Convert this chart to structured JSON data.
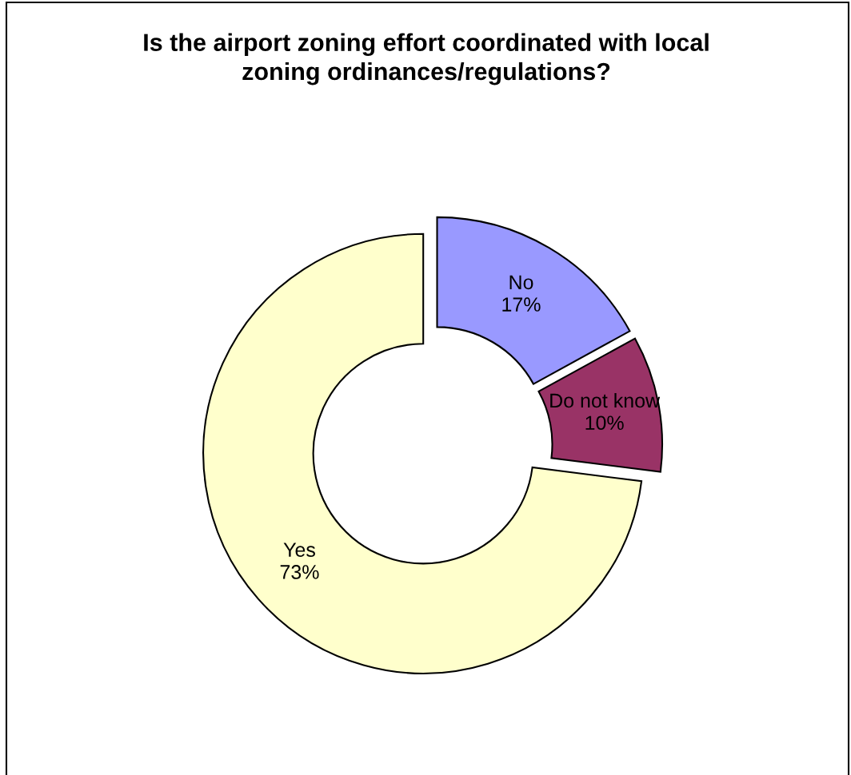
{
  "chart_data": {
    "type": "donut",
    "title": "Is the airport zoning effort coordinated with local\nzoning ordinances/regulations?",
    "categories": [
      "No",
      "Do not know",
      "Yes"
    ],
    "values": [
      17,
      10,
      73
    ],
    "colors": [
      "#9999ff",
      "#993366",
      "#ffffcc"
    ],
    "value_labels": [
      "17%",
      "10%",
      "73%"
    ]
  }
}
